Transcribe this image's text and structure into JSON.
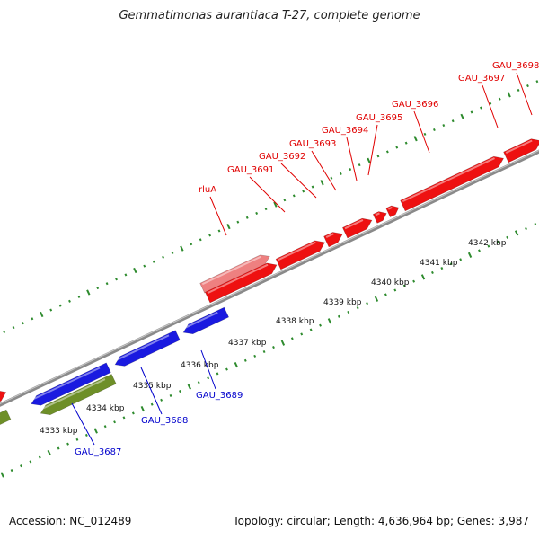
{
  "title": "Gemmatimonas aurantiaca T-27, complete genome",
  "footer": {
    "accession": "Accession: NC_012489",
    "summary": "Topology: circular; Length: 4,636,964 bp; Genes: 3,987"
  },
  "colors": {
    "forward_gene": "#ee1111",
    "forward_gene_light": "#ee8080",
    "reverse_gene": "#1a1ae0",
    "reverse_rna": "#6e8f28",
    "backbone": "#8a8a8a",
    "ticks": "#2e8b2e",
    "forward_label": "#e00000",
    "reverse_label": "#0000cc"
  },
  "scale_ticks": [
    "4333 kbp",
    "4334 kbp",
    "4335 kbp",
    "4336 kbp",
    "4337 kbp",
    "4338 kbp",
    "4339 kbp",
    "4340 kbp",
    "4341 kbp",
    "4342 kbp"
  ],
  "forward_labels": [
    "rluA",
    "GAU_3691",
    "GAU_3692",
    "GAU_3693",
    "GAU_3694",
    "GAU_3695",
    "GAU_3696",
    "GAU_3697",
    "GAU_3698"
  ],
  "reverse_labels": [
    "GAU_3687",
    "GAU_3688",
    "GAU_3689"
  ]
}
